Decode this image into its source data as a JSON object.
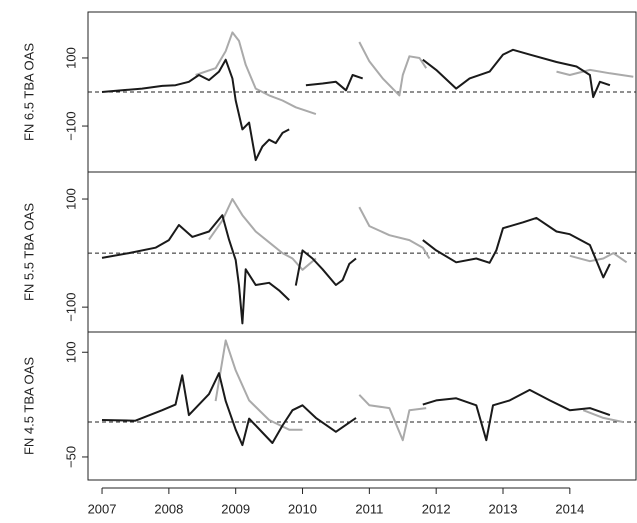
{
  "chart_data": [
    {
      "type": "line",
      "ylabel": "FN 6.5 TBA OAS",
      "xlim": [
        2006.79,
        2014.99
      ],
      "ylim": [
        -235,
        235
      ],
      "yticks": [
        {
          "value": -100,
          "label": "−100"
        },
        100
      ],
      "reference_line": 0,
      "series": [
        {
          "color": "#aaaaaa",
          "x": [
            2008.4,
            2008.7,
            2008.85,
            2008.95,
            2009.05,
            2009.15,
            2009.3,
            2009.5,
            2009.7,
            2009.9,
            2010.05,
            2010.2,
            2010.5,
            2010.85,
            2011.0,
            2011.2,
            2011.45,
            2011.5,
            2011.6,
            2011.75,
            2011.85,
            2012.9,
            2013.8,
            2014.0,
            2014.3,
            2014.6,
            2014.95
          ],
          "values": [
            50,
            70,
            120,
            175,
            150,
            80,
            10,
            -10,
            -25,
            -45,
            -55,
            -65,
            null,
            147,
            90,
            40,
            -10,
            50,
            105,
            100,
            70,
            null,
            60,
            50,
            65,
            55,
            45
          ]
        },
        {
          "color": "#1a1a1a",
          "x": [
            2007.0,
            2007.3,
            2007.6,
            2007.9,
            2008.1,
            2008.3,
            2008.45,
            2008.6,
            2008.75,
            2008.85,
            2008.95,
            2009.0,
            2009.1,
            2009.2,
            2009.3,
            2009.4,
            2009.5,
            2009.6,
            2009.7,
            2009.8,
            2009.95,
            2010.05,
            2010.3,
            2010.5,
            2010.65,
            2010.75,
            2010.9,
            2011.3,
            2011.8,
            2012.0,
            2012.3,
            2012.5,
            2012.8,
            2013.0,
            2013.15,
            2013.4,
            2013.8,
            2014.1,
            2014.3,
            2014.35,
            2014.45,
            2014.6
          ],
          "values": [
            0,
            5,
            10,
            18,
            20,
            30,
            50,
            35,
            60,
            95,
            40,
            -25,
            -110,
            -90,
            -200,
            -160,
            -140,
            -150,
            -120,
            -110,
            null,
            20,
            25,
            30,
            5,
            50,
            40,
            null,
            95,
            65,
            10,
            40,
            60,
            110,
            124,
            110,
            88,
            75,
            50,
            -15,
            30,
            20
          ]
        }
      ]
    },
    {
      "type": "line",
      "ylabel": "FN 5.5 TBA OAS",
      "xlim": [
        2006.79,
        2014.99
      ],
      "ylim": [
        -146,
        150
      ],
      "yticks": [
        {
          "value": -100,
          "label": "−100"
        },
        100
      ],
      "reference_line": 0,
      "series": [
        {
          "color": "#aaaaaa",
          "x": [
            2008.6,
            2008.8,
            2008.95,
            2009.1,
            2009.3,
            2009.5,
            2009.7,
            2009.85,
            2010.0,
            2010.2,
            2010.5,
            2010.85,
            2011.0,
            2011.3,
            2011.6,
            2011.8,
            2011.9,
            2012.9,
            2014.0,
            2014.3,
            2014.5,
            2014.65,
            2014.85
          ],
          "values": [
            25,
            60,
            100,
            70,
            40,
            20,
            0,
            -10,
            -31,
            -10,
            null,
            85,
            50,
            33,
            24,
            10,
            -10,
            null,
            -5,
            -15,
            -10,
            0,
            -17
          ]
        },
        {
          "color": "#1a1a1a",
          "x": [
            2007.0,
            2007.4,
            2007.8,
            2008.0,
            2008.15,
            2008.35,
            2008.6,
            2008.8,
            2008.9,
            2009.0,
            2009.05,
            2009.1,
            2009.15,
            2009.3,
            2009.5,
            2009.65,
            2009.8,
            2009.85,
            2009.9,
            2010.0,
            2010.15,
            2010.3,
            2010.5,
            2010.6,
            2010.7,
            2010.8,
            2011.3,
            2011.8,
            2012.0,
            2012.3,
            2012.6,
            2012.8,
            2012.9,
            2013.0,
            2013.3,
            2013.5,
            2013.8,
            2014.0,
            2014.3,
            2014.5,
            2014.6
          ],
          "values": [
            -9,
            0,
            10,
            24,
            52,
            30,
            40,
            70,
            25,
            -13,
            -60,
            -130,
            -30,
            -59,
            -55,
            -69,
            -87,
            null,
            -60,
            5,
            -10,
            -30,
            -59,
            -50,
            -20,
            -10,
            null,
            24,
            5,
            -17,
            -10,
            -18,
            5,
            46,
            57,
            65,
            40,
            35,
            15,
            -45,
            -20
          ]
        }
      ]
    },
    {
      "type": "line",
      "ylabel": "FN 4.5 TBA OAS",
      "xlim": [
        2006.79,
        2014.99
      ],
      "ylim": [
        -83,
        129
      ],
      "yticks": [
        {
          "value": -50,
          "label": "−50"
        },
        100
      ],
      "reference_line": 0,
      "xticks": [
        2007,
        2008,
        2009,
        2010,
        2011,
        2012,
        2013,
        2014
      ],
      "series": [
        {
          "color": "#aaaaaa",
          "x": [
            2008.7,
            2008.85,
            2009.0,
            2009.2,
            2009.5,
            2009.8,
            2010.0,
            2010.4,
            2010.85,
            2011.0,
            2011.3,
            2011.5,
            2011.6,
            2011.85,
            2012.9,
            2014.2,
            2014.5,
            2014.8
          ],
          "values": [
            30,
            117,
            74,
            31,
            3,
            -11,
            -11,
            null,
            39,
            24,
            20,
            -26,
            17,
            20,
            null,
            17,
            6,
            0
          ]
        },
        {
          "color": "#1a1a1a",
          "x": [
            2007.0,
            2007.5,
            2007.9,
            2008.1,
            2008.2,
            2008.3,
            2008.6,
            2008.75,
            2008.85,
            2009.0,
            2009.1,
            2009.2,
            2009.4,
            2009.55,
            2009.7,
            2009.85,
            2010.0,
            2010.2,
            2010.5,
            2010.8,
            2011.3,
            2011.8,
            2012.0,
            2012.3,
            2012.6,
            2012.75,
            2012.85,
            2013.1,
            2013.4,
            2013.7,
            2014.0,
            2014.3,
            2014.6
          ],
          "values": [
            3,
            2,
            17,
            25,
            67,
            10,
            40,
            70,
            30,
            -11,
            -33,
            5,
            -15,
            -30,
            -5,
            17,
            24,
            6,
            -14,
            6,
            null,
            25,
            31,
            34,
            24,
            -26,
            24,
            31,
            46,
            31,
            17,
            20,
            10
          ]
        }
      ]
    }
  ]
}
